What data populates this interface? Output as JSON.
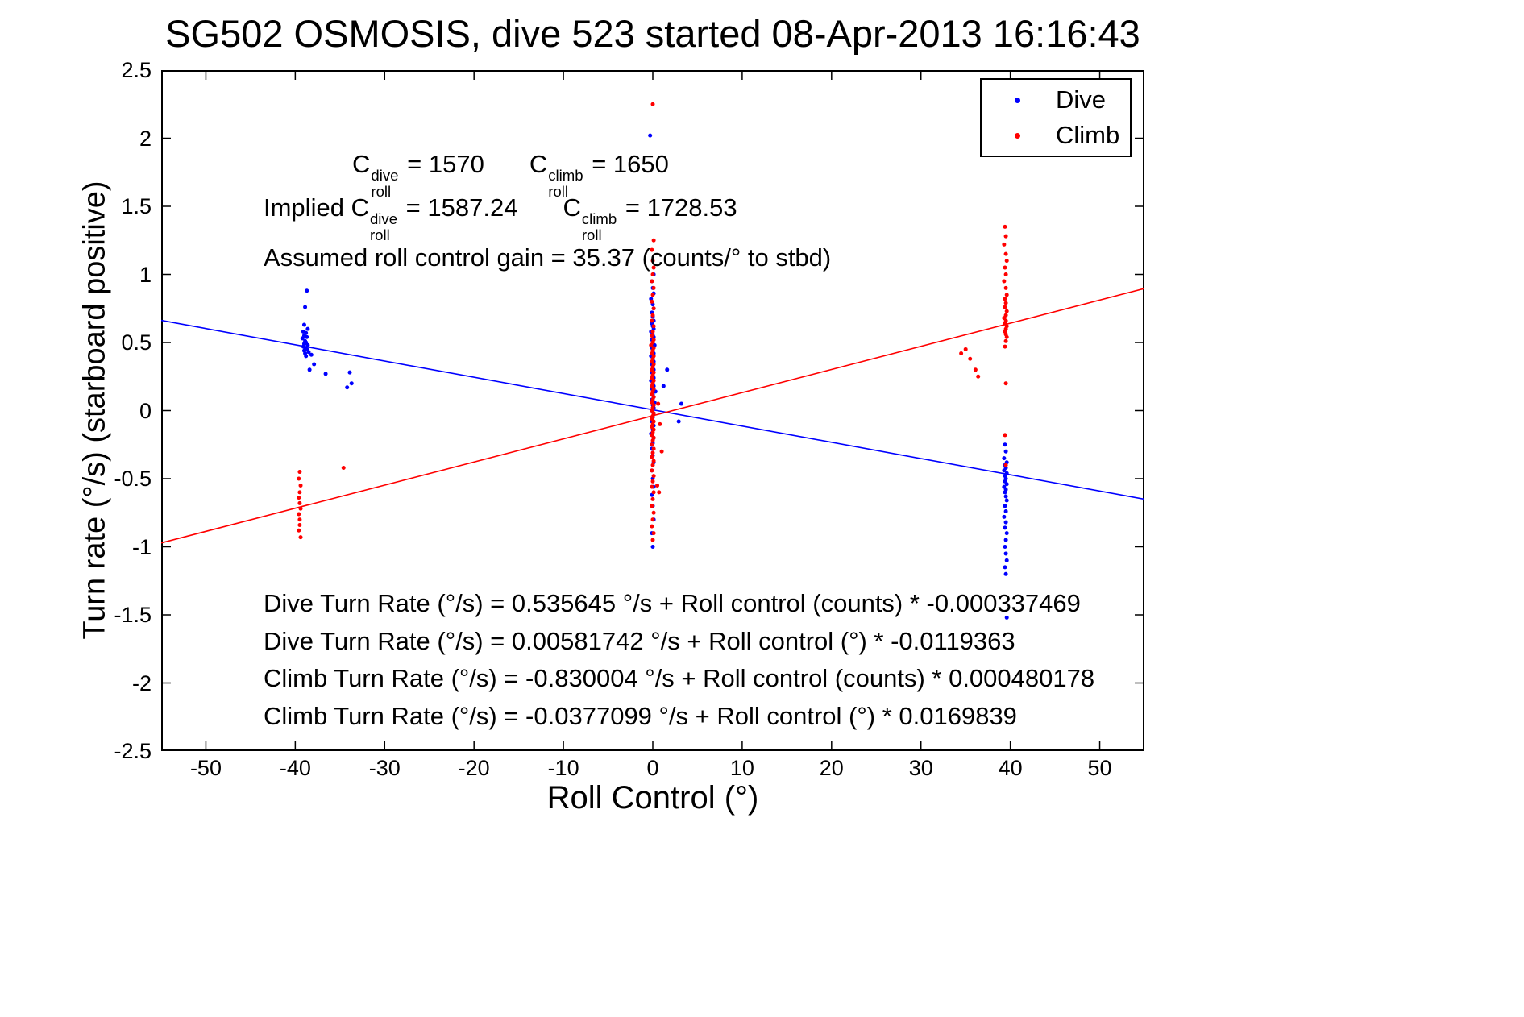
{
  "chart_data": {
    "type": "scatter",
    "title": "SG502 OSMOSIS, dive 523 started 08-Apr-2013 16:16:43",
    "xlabel": "Roll Control (°)",
    "ylabel": "Turn rate (°/s) (starboard positive)",
    "xlim": [
      -55,
      55
    ],
    "ylim": [
      -2.5,
      2.5
    ],
    "xticks": [
      -50,
      -40,
      -30,
      -20,
      -10,
      0,
      10,
      20,
      30,
      40,
      50
    ],
    "yticks": [
      -2.5,
      -2,
      -1.5,
      -1,
      -0.5,
      0,
      0.5,
      1,
      1.5,
      2,
      2.5
    ],
    "grid": false,
    "legend_position": "top-right",
    "series": [
      {
        "name": "Dive",
        "color": "#0000ff",
        "marker": "dot",
        "points": [
          [
            -38.7,
            0.88
          ],
          [
            -38.9,
            0.76
          ],
          [
            -39.0,
            0.63
          ],
          [
            -38.6,
            0.6
          ],
          [
            -39.1,
            0.58
          ],
          [
            -38.8,
            0.57
          ],
          [
            -39.0,
            0.55
          ],
          [
            -38.7,
            0.54
          ],
          [
            -39.2,
            0.53
          ],
          [
            -38.9,
            0.51
          ],
          [
            -38.8,
            0.5
          ],
          [
            -39.0,
            0.49
          ],
          [
            -38.6,
            0.48
          ],
          [
            -39.1,
            0.47
          ],
          [
            -38.9,
            0.46
          ],
          [
            -38.7,
            0.45
          ],
          [
            -39.0,
            0.44
          ],
          [
            -38.5,
            0.43
          ],
          [
            -38.9,
            0.42
          ],
          [
            -38.2,
            0.41
          ],
          [
            -38.8,
            0.4
          ],
          [
            -37.9,
            0.34
          ],
          [
            -38.4,
            0.3
          ],
          [
            -36.6,
            0.27
          ],
          [
            -33.9,
            0.28
          ],
          [
            -33.7,
            0.2
          ],
          [
            -34.2,
            0.17
          ],
          [
            -0.3,
            2.02
          ],
          [
            0.1,
            1.0
          ],
          [
            -0.1,
            0.95
          ],
          [
            0.0,
            0.9
          ],
          [
            0.1,
            0.86
          ],
          [
            -0.2,
            0.82
          ],
          [
            0.0,
            0.78
          ],
          [
            0.1,
            0.75
          ],
          [
            -0.1,
            0.72
          ],
          [
            0.0,
            0.69
          ],
          [
            0.1,
            0.66
          ],
          [
            -0.1,
            0.64
          ],
          [
            0.0,
            0.62
          ],
          [
            0.1,
            0.6
          ],
          [
            -0.2,
            0.58
          ],
          [
            0.0,
            0.56
          ],
          [
            0.1,
            0.54
          ],
          [
            -0.1,
            0.52
          ],
          [
            0.0,
            0.5
          ],
          [
            0.2,
            0.48
          ],
          [
            -0.1,
            0.46
          ],
          [
            0.0,
            0.44
          ],
          [
            0.1,
            0.42
          ],
          [
            -0.2,
            0.4
          ],
          [
            0.0,
            0.38
          ],
          [
            0.1,
            0.36
          ],
          [
            -0.1,
            0.34
          ],
          [
            0.0,
            0.32
          ],
          [
            0.1,
            0.3
          ],
          [
            -0.1,
            0.28
          ],
          [
            0.0,
            0.26
          ],
          [
            0.1,
            0.24
          ],
          [
            -0.2,
            0.22
          ],
          [
            0.0,
            0.2
          ],
          [
            0.1,
            0.18
          ],
          [
            -0.1,
            0.16
          ],
          [
            0.3,
            0.14
          ],
          [
            0.0,
            0.12
          ],
          [
            0.1,
            0.1
          ],
          [
            -0.1,
            0.08
          ],
          [
            0.2,
            0.06
          ],
          [
            0.0,
            0.04
          ],
          [
            0.1,
            0.02
          ],
          [
            -0.1,
            0.0
          ],
          [
            0.1,
            -0.02
          ],
          [
            0.0,
            -0.05
          ],
          [
            -0.1,
            -0.08
          ],
          [
            0.1,
            -0.11
          ],
          [
            0.0,
            -0.14
          ],
          [
            -0.2,
            -0.17
          ],
          [
            0.1,
            -0.2
          ],
          [
            0.0,
            -0.24
          ],
          [
            -0.1,
            -0.28
          ],
          [
            0.0,
            -0.33
          ],
          [
            0.1,
            -0.38
          ],
          [
            -0.1,
            -0.44
          ],
          [
            0.0,
            -0.5
          ],
          [
            0.1,
            -0.56
          ],
          [
            -0.1,
            -0.62
          ],
          [
            0.0,
            -0.7
          ],
          [
            0.1,
            -0.8
          ],
          [
            -0.1,
            -0.9
          ],
          [
            0.0,
            -1.0
          ],
          [
            1.2,
            0.18
          ],
          [
            1.6,
            0.3
          ],
          [
            2.9,
            -0.08
          ],
          [
            3.2,
            0.05
          ],
          [
            39.4,
            -0.25
          ],
          [
            39.5,
            -0.3
          ],
          [
            39.3,
            -0.35
          ],
          [
            39.6,
            -0.38
          ],
          [
            39.4,
            -0.4
          ],
          [
            39.5,
            -0.42
          ],
          [
            39.3,
            -0.44
          ],
          [
            39.6,
            -0.46
          ],
          [
            39.4,
            -0.48
          ],
          [
            39.5,
            -0.5
          ],
          [
            39.4,
            -0.52
          ],
          [
            39.6,
            -0.54
          ],
          [
            39.3,
            -0.56
          ],
          [
            39.5,
            -0.58
          ],
          [
            39.4,
            -0.6
          ],
          [
            39.5,
            -0.63
          ],
          [
            39.6,
            -0.66
          ],
          [
            39.4,
            -0.7
          ],
          [
            39.5,
            -0.74
          ],
          [
            39.3,
            -0.78
          ],
          [
            39.5,
            -0.82
          ],
          [
            39.4,
            -0.86
          ],
          [
            39.6,
            -0.9
          ],
          [
            39.5,
            -0.95
          ],
          [
            39.4,
            -1.0
          ],
          [
            39.5,
            -1.05
          ],
          [
            39.6,
            -1.1
          ],
          [
            39.4,
            -1.15
          ],
          [
            39.5,
            -1.2
          ],
          [
            39.6,
            -1.52
          ]
        ]
      },
      {
        "name": "Climb",
        "color": "#ff0000",
        "marker": "dot",
        "points": [
          [
            -39.5,
            -0.45
          ],
          [
            -39.6,
            -0.5
          ],
          [
            -39.4,
            -0.55
          ],
          [
            -39.5,
            -0.6
          ],
          [
            -39.6,
            -0.64
          ],
          [
            -39.5,
            -0.68
          ],
          [
            -39.4,
            -0.72
          ],
          [
            -39.6,
            -0.76
          ],
          [
            -39.5,
            -0.8
          ],
          [
            -39.5,
            -0.84
          ],
          [
            -39.6,
            -0.88
          ],
          [
            -39.4,
            -0.93
          ],
          [
            -34.6,
            -0.42
          ],
          [
            0.0,
            2.25
          ],
          [
            0.1,
            1.25
          ],
          [
            -0.1,
            1.18
          ],
          [
            0.0,
            1.1
          ],
          [
            0.1,
            1.05
          ],
          [
            0.0,
            1.0
          ],
          [
            -0.1,
            0.95
          ],
          [
            0.1,
            0.9
          ],
          [
            0.0,
            0.85
          ],
          [
            -0.1,
            0.8
          ],
          [
            0.1,
            0.75
          ],
          [
            0.0,
            0.7
          ],
          [
            -0.1,
            0.66
          ],
          [
            0.1,
            0.62
          ],
          [
            0.0,
            0.58
          ],
          [
            -0.1,
            0.55
          ],
          [
            0.1,
            0.52
          ],
          [
            0.0,
            0.5
          ],
          [
            -0.2,
            0.48
          ],
          [
            0.1,
            0.46
          ],
          [
            0.0,
            0.44
          ],
          [
            -0.1,
            0.42
          ],
          [
            0.1,
            0.4
          ],
          [
            0.0,
            0.38
          ],
          [
            -0.1,
            0.36
          ],
          [
            0.1,
            0.34
          ],
          [
            0.0,
            0.32
          ],
          [
            -0.1,
            0.3
          ],
          [
            0.1,
            0.28
          ],
          [
            0.0,
            0.26
          ],
          [
            -0.1,
            0.24
          ],
          [
            0.1,
            0.22
          ],
          [
            0.0,
            0.2
          ],
          [
            -0.1,
            0.18
          ],
          [
            0.1,
            0.16
          ],
          [
            0.0,
            0.14
          ],
          [
            -0.1,
            0.12
          ],
          [
            0.1,
            0.1
          ],
          [
            0.0,
            0.08
          ],
          [
            -0.1,
            0.06
          ],
          [
            0.1,
            0.04
          ],
          [
            0.0,
            0.02
          ],
          [
            -0.1,
            0.0
          ],
          [
            0.1,
            -0.02
          ],
          [
            0.0,
            -0.04
          ],
          [
            -0.1,
            -0.06
          ],
          [
            0.1,
            -0.08
          ],
          [
            0.0,
            -0.1
          ],
          [
            -0.1,
            -0.12
          ],
          [
            0.1,
            -0.14
          ],
          [
            0.0,
            -0.16
          ],
          [
            -0.1,
            -0.18
          ],
          [
            0.1,
            -0.2
          ],
          [
            0.0,
            -0.22
          ],
          [
            -0.1,
            -0.25
          ],
          [
            0.1,
            -0.28
          ],
          [
            0.0,
            -0.31
          ],
          [
            -0.1,
            -0.34
          ],
          [
            0.1,
            -0.37
          ],
          [
            0.0,
            -0.4
          ],
          [
            -0.1,
            -0.44
          ],
          [
            0.1,
            -0.48
          ],
          [
            0.0,
            -0.52
          ],
          [
            -0.1,
            -0.56
          ],
          [
            0.1,
            -0.6
          ],
          [
            0.0,
            -0.65
          ],
          [
            -0.1,
            -0.7
          ],
          [
            0.1,
            -0.75
          ],
          [
            0.0,
            -0.8
          ],
          [
            -0.1,
            -0.85
          ],
          [
            0.1,
            -0.9
          ],
          [
            0.0,
            -0.95
          ],
          [
            0.5,
            -0.55
          ],
          [
            0.7,
            -0.6
          ],
          [
            0.8,
            -0.1
          ],
          [
            0.6,
            0.05
          ],
          [
            1.0,
            -0.3
          ],
          [
            39.4,
            1.35
          ],
          [
            39.5,
            1.28
          ],
          [
            39.3,
            1.22
          ],
          [
            39.5,
            1.15
          ],
          [
            39.6,
            1.1
          ],
          [
            39.4,
            1.05
          ],
          [
            39.5,
            1.0
          ],
          [
            39.3,
            0.95
          ],
          [
            39.5,
            0.9
          ],
          [
            39.6,
            0.85
          ],
          [
            39.4,
            0.82
          ],
          [
            39.5,
            0.79
          ],
          [
            39.4,
            0.76
          ],
          [
            39.6,
            0.73
          ],
          [
            39.5,
            0.7
          ],
          [
            39.3,
            0.68
          ],
          [
            39.5,
            0.66
          ],
          [
            39.4,
            0.64
          ],
          [
            39.6,
            0.62
          ],
          [
            39.5,
            0.6
          ],
          [
            39.4,
            0.58
          ],
          [
            39.5,
            0.56
          ],
          [
            39.6,
            0.54
          ],
          [
            39.5,
            0.51
          ],
          [
            39.4,
            0.47
          ],
          [
            35.0,
            0.45
          ],
          [
            34.5,
            0.42
          ],
          [
            35.5,
            0.38
          ],
          [
            36.1,
            0.3
          ],
          [
            36.4,
            0.25
          ],
          [
            39.5,
            0.2
          ],
          [
            39.4,
            -0.18
          ],
          [
            39.5,
            -0.4
          ]
        ]
      }
    ],
    "fit_lines": [
      {
        "name": "dive-fit-line",
        "color": "#0000ff",
        "intercept": 0.00581742,
        "slope": -0.0119363
      },
      {
        "name": "climb-fit-line",
        "color": "#ff0000",
        "intercept": -0.0377099,
        "slope": 0.0169839
      }
    ]
  },
  "annotations": {
    "coeff": {
      "sym": "C",
      "sub": "roll",
      "dive_sup": "dive",
      "dive_val": " = 1570",
      "climb_sup": "climb",
      "climb_val": " = 1650"
    },
    "implied": {
      "prefix": "Implied ",
      "sym": "C",
      "sub": "roll",
      "dive_sup": "dive",
      "dive_val": " = 1587.24",
      "climb_sup": "climb",
      "climb_val": " = 1728.53"
    },
    "gain": "Assumed roll control gain = 35.37 (counts/° to stbd)",
    "equations": [
      "Dive Turn Rate (°/s) = 0.535645 °/s + Roll control (counts) * -0.000337469",
      "Dive Turn Rate (°/s) = 0.00581742 °/s + Roll control (°) * -0.0119363",
      "Climb Turn Rate (°/s) = -0.830004 °/s + Roll control (counts) * 0.000480178",
      "Climb Turn Rate (°/s) = -0.0377099 °/s + Roll control (°) * 0.0169839"
    ]
  }
}
